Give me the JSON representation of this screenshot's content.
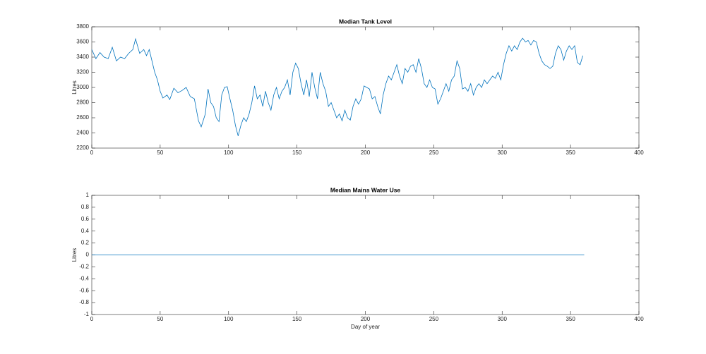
{
  "chart_data": [
    {
      "type": "line",
      "title": "Median Tank Level",
      "ylabel": "Litres",
      "color": "#0072bd",
      "x": [
        0,
        3,
        6,
        9,
        12,
        15,
        18,
        21,
        24,
        27,
        30,
        32,
        35,
        38,
        40,
        42,
        44,
        46,
        48,
        50,
        52,
        55,
        57,
        60,
        63,
        66,
        69,
        72,
        75,
        78,
        80,
        83,
        85,
        87,
        89,
        91,
        93,
        95,
        97,
        99,
        101,
        103,
        105,
        107,
        109,
        111,
        113,
        115,
        117,
        119,
        121,
        123,
        125,
        127,
        129,
        131,
        133,
        135,
        137,
        139,
        141,
        143,
        145,
        147,
        149,
        151,
        153,
        155,
        157,
        159,
        161,
        163,
        165,
        167,
        169,
        171,
        173,
        175,
        177,
        179,
        181,
        183,
        185,
        187,
        189,
        191,
        193,
        195,
        197,
        199,
        201,
        203,
        205,
        207,
        209,
        211,
        213,
        215,
        217,
        219,
        221,
        223,
        225,
        227,
        229,
        231,
        233,
        235,
        237,
        239,
        241,
        243,
        245,
        247,
        249,
        251,
        253,
        255,
        257,
        259,
        261,
        263,
        265,
        267,
        269,
        271,
        273,
        275,
        277,
        279,
        281,
        283,
        285,
        287,
        289,
        291,
        293,
        295,
        297,
        299,
        301,
        303,
        305,
        307,
        309,
        311,
        313,
        315,
        317,
        319,
        321,
        323,
        325,
        327,
        329,
        331,
        333,
        335,
        337,
        339,
        341,
        343,
        345,
        347,
        349,
        351,
        353,
        355,
        357,
        359
      ],
      "values": [
        3500,
        3380,
        3460,
        3400,
        3380,
        3530,
        3350,
        3400,
        3380,
        3450,
        3500,
        3640,
        3450,
        3500,
        3420,
        3500,
        3350,
        3200,
        3100,
        2950,
        2860,
        2900,
        2840,
        2990,
        2930,
        2960,
        3000,
        2880,
        2850,
        2560,
        2480,
        2650,
        2980,
        2800,
        2750,
        2600,
        2550,
        2900,
        3000,
        3010,
        2850,
        2700,
        2500,
        2360,
        2500,
        2600,
        2550,
        2650,
        2800,
        3020,
        2850,
        2900,
        2750,
        2950,
        2800,
        2700,
        2900,
        3000,
        2850,
        2950,
        3000,
        3100,
        2900,
        3200,
        3320,
        3250,
        3050,
        2900,
        3100,
        2880,
        3200,
        3000,
        2850,
        3200,
        3050,
        2950,
        2750,
        2800,
        2700,
        2600,
        2650,
        2560,
        2700,
        2600,
        2570,
        2750,
        2850,
        2780,
        2850,
        3020,
        3000,
        2980,
        2850,
        2880,
        2750,
        2650,
        2900,
        3050,
        3150,
        3100,
        3200,
        3300,
        3150,
        3050,
        3250,
        3200,
        3280,
        3300,
        3200,
        3380,
        3250,
        3050,
        3000,
        3100,
        3000,
        2980,
        2780,
        2850,
        2950,
        3050,
        2950,
        3100,
        3150,
        3350,
        3250,
        2980,
        3000,
        2950,
        3050,
        2900,
        3000,
        3050,
        3000,
        3100,
        3050,
        3100,
        3150,
        3120,
        3200,
        3100,
        3300,
        3450,
        3550,
        3480,
        3550,
        3500,
        3600,
        3650,
        3600,
        3620,
        3560,
        3620,
        3600,
        3450,
        3350,
        3300,
        3280,
        3250,
        3280,
        3450,
        3550,
        3500,
        3360,
        3480,
        3550,
        3500,
        3550,
        3330,
        3300,
        3420
      ],
      "xlim": [
        0,
        400
      ],
      "xticks": [
        0,
        50,
        100,
        150,
        200,
        250,
        300,
        350,
        400
      ],
      "ylim": [
        2200,
        3800
      ],
      "yticks": [
        2200,
        2400,
        2600,
        2800,
        3000,
        3200,
        3400,
        3600,
        3800
      ]
    },
    {
      "type": "line",
      "title": "Median Mains Water Use",
      "ylabel": "Litres",
      "xlabel": "Day of year",
      "color": "#0072bd",
      "x": [
        0,
        360
      ],
      "values": [
        0,
        0
      ],
      "xlim": [
        0,
        400
      ],
      "xticks": [
        0,
        50,
        100,
        150,
        200,
        250,
        300,
        350,
        400
      ],
      "ylim": [
        -1,
        1
      ],
      "yticks": [
        -1,
        -0.8,
        -0.6,
        -0.4,
        -0.2,
        0,
        0.2,
        0.4,
        0.6,
        0.8,
        1
      ]
    }
  ]
}
